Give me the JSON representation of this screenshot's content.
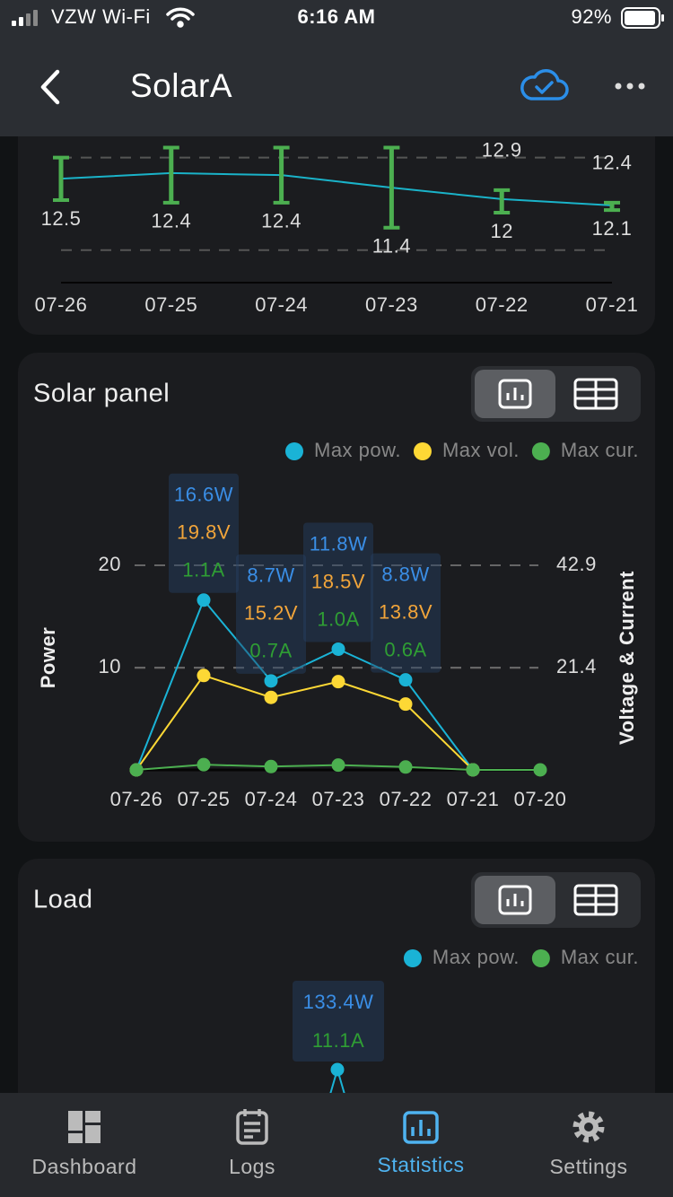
{
  "status_bar": {
    "carrier": "VZW Wi-Fi",
    "time": "6:16 AM",
    "battery": "92%"
  },
  "header": {
    "title": "SolarA"
  },
  "battery_chart": {
    "type": "errorbar",
    "categories": [
      "07-26",
      "07-25",
      "07-24",
      "07-23",
      "07-22",
      "07-21"
    ],
    "values": [
      13.36,
      13.58,
      13.5,
      13.0,
      12.54,
      12.29
    ],
    "low": [
      12.5,
      12.4,
      12.4,
      11.4,
      12,
      12.1
    ],
    "high": [
      14.2,
      14.6,
      14.6,
      14.6,
      12.9,
      12.4
    ],
    "color": "#4caf50",
    "line_color": "#1ab3c9",
    "ylim": [
      9.2,
      15.3
    ],
    "yticks": [
      10.5,
      14.2
    ]
  },
  "solar_chart": {
    "type": "line",
    "title": "Solar panel",
    "y_label": "Power",
    "y2_label": "Voltage & Current",
    "categories": [
      "07-26",
      "07-25",
      "07-24",
      "07-23",
      "07-22",
      "07-21",
      "07-20"
    ],
    "series": [
      {
        "name": "Max pow.",
        "color": "#1ab3d6",
        "label_color": "#3a8ee6",
        "values": [
          0,
          16.6,
          8.7,
          11.8,
          8.8,
          0,
          null
        ],
        "value_labels": [
          null,
          "16.6W",
          "8.7W",
          "11.8W",
          "8.8W",
          null,
          null
        ]
      },
      {
        "name": "Max vol.",
        "color": "#fdd835",
        "label_color": "#f2a53a",
        "axis": "y2",
        "values": [
          0,
          19.8,
          15.2,
          18.5,
          13.8,
          0,
          null
        ],
        "value_labels": [
          null,
          "19.8V",
          "15.2V",
          "18.5V",
          "13.8V",
          null,
          null
        ]
      },
      {
        "name": "Max cur.",
        "color": "#4caf50",
        "label_color": "#2f9e34",
        "axis": "y2",
        "values": [
          0,
          1.1,
          0.7,
          1.0,
          0.6,
          0,
          0
        ],
        "value_labels": [
          null,
          "1.1A",
          "0.7A",
          "1.0A",
          "0.6A",
          null,
          null
        ]
      }
    ],
    "ylim": [
      0,
      20
    ],
    "yticks": [
      10,
      20
    ],
    "y2lim": [
      0,
      42.9
    ],
    "y2ticks": [
      21.4,
      42.9
    ]
  },
  "load_chart": {
    "type": "line",
    "title": "Load",
    "series": [
      {
        "name": "Max pow.",
        "color": "#1ab3d6",
        "label_color": "#3a8ee6",
        "values": [
          133.4
        ],
        "value_labels": [
          "133.4W"
        ]
      },
      {
        "name": "Max cur.",
        "color": "#4caf50",
        "label_color": "#2f9e34",
        "values": [
          11.1
        ],
        "value_labels": [
          "11.1A"
        ]
      }
    ]
  },
  "tab_bar": {
    "tabs": [
      "Dashboard",
      "Logs",
      "Statistics",
      "Settings"
    ],
    "active": 2
  }
}
